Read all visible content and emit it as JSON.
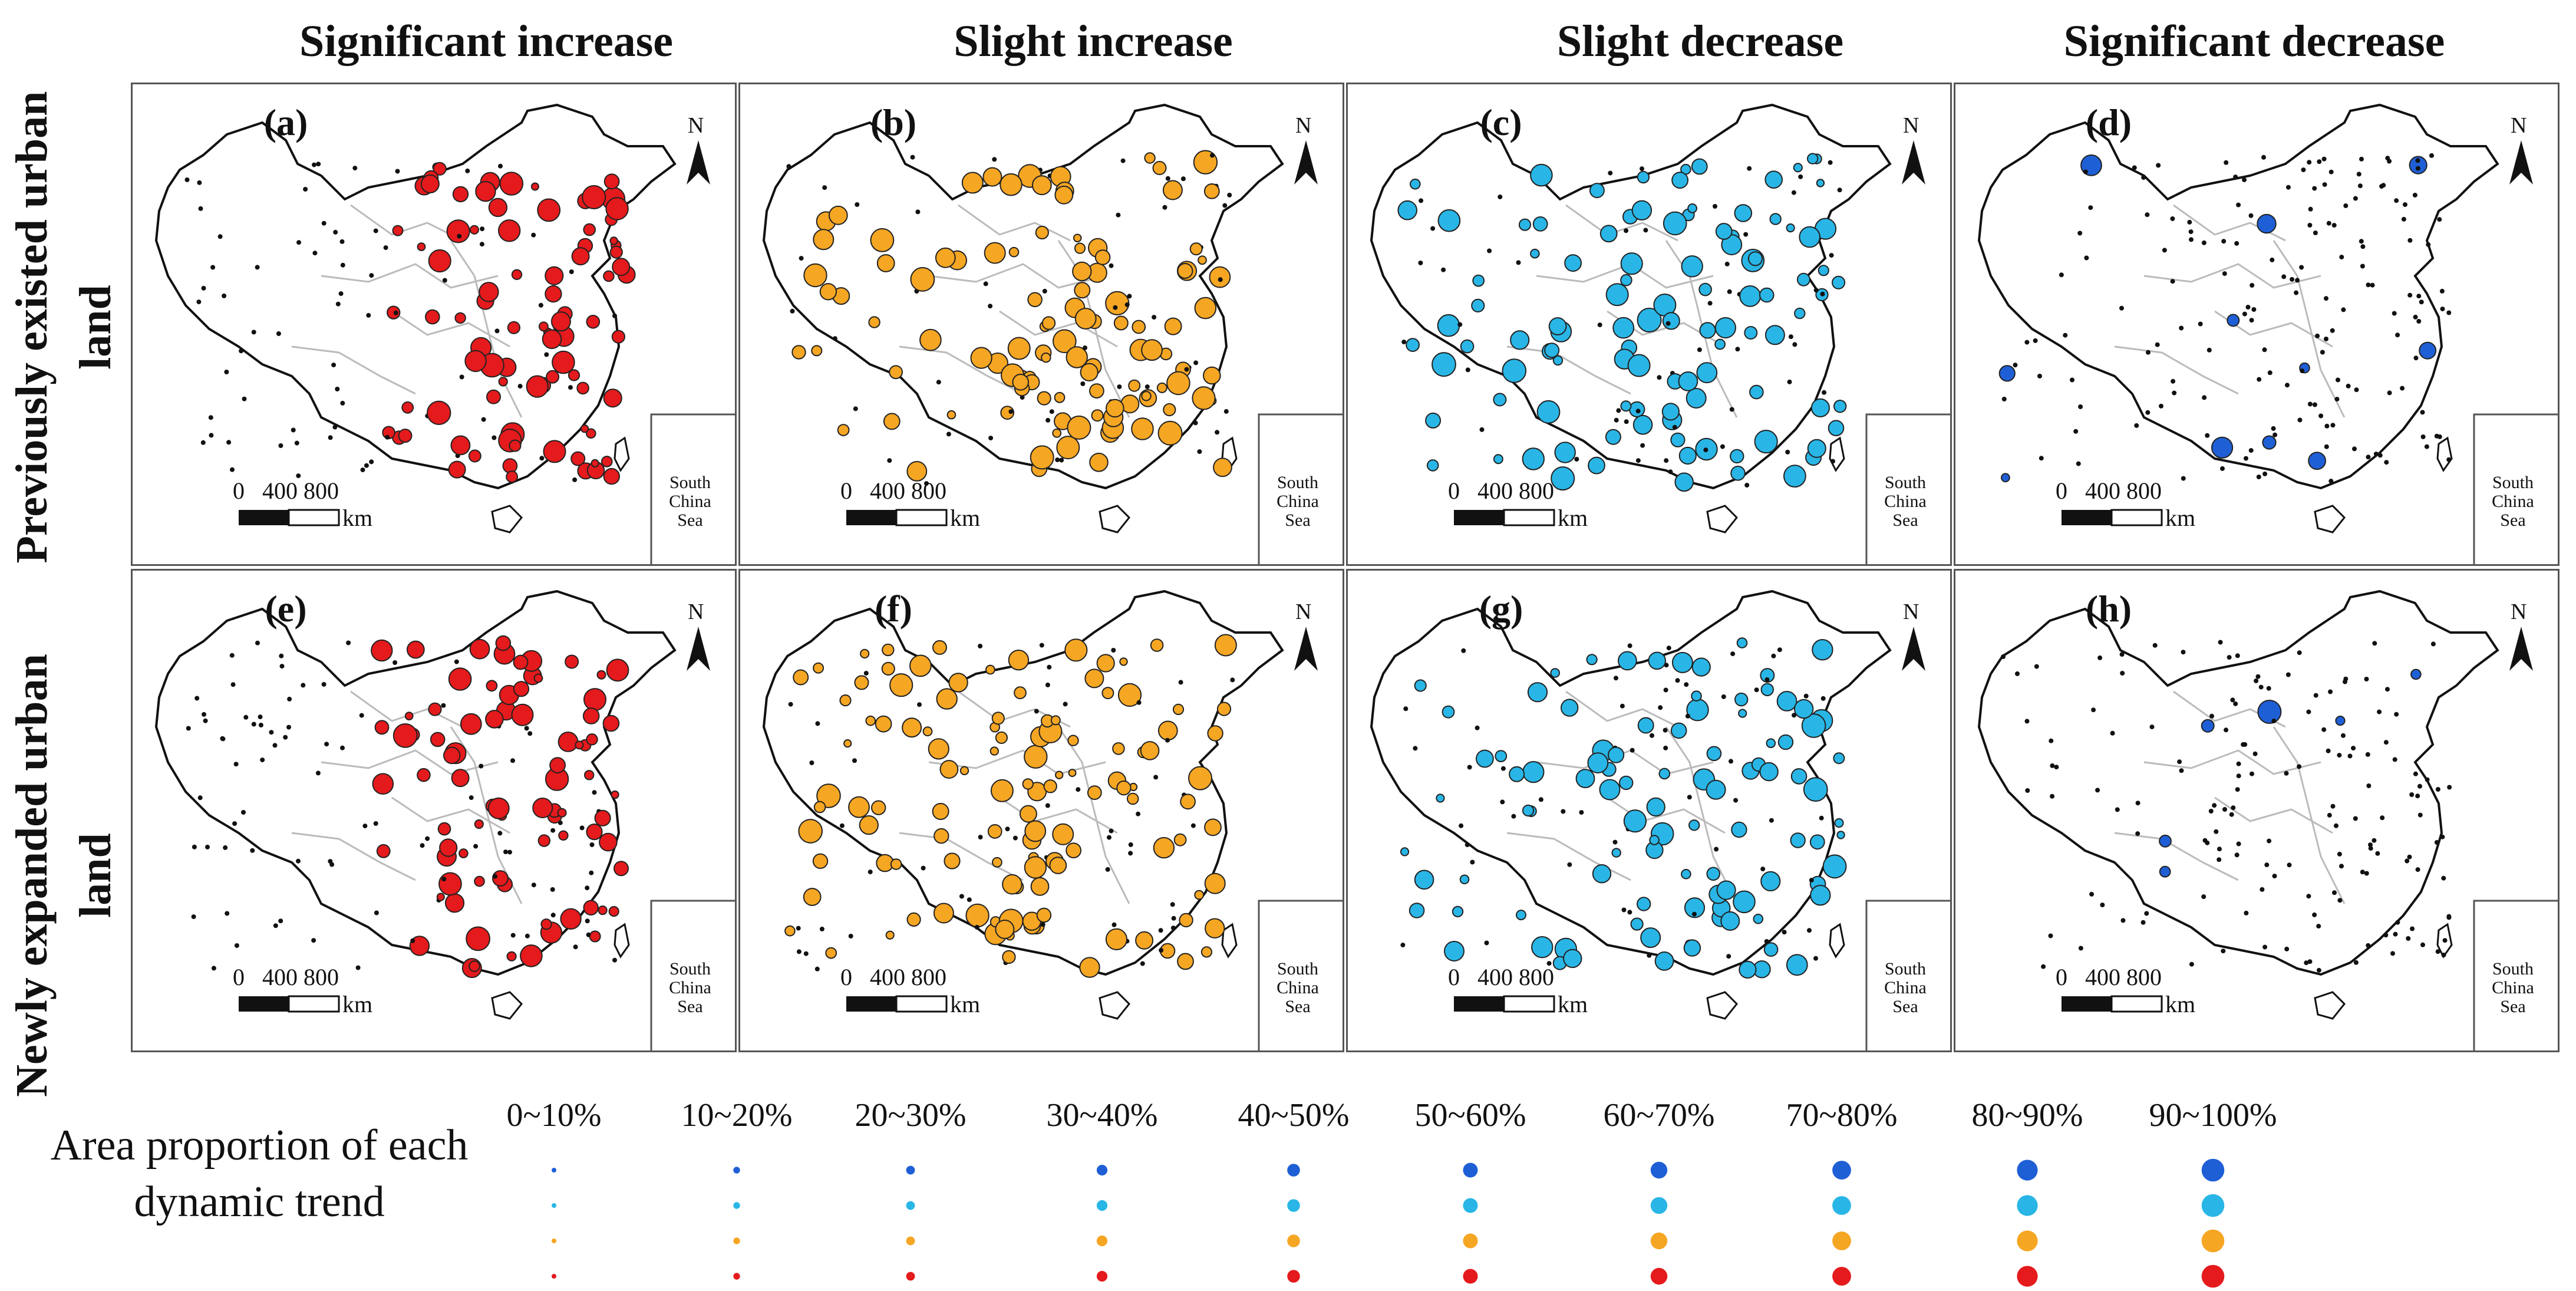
{
  "figure": {
    "column_titles": [
      "Significant increase",
      "Slight increase",
      "Slight decrease",
      "Significant decrease"
    ],
    "row_titles": [
      "Previously existed urban land",
      "Newly expanded urban land"
    ],
    "panels": [
      {
        "label": "(a)",
        "trend": "Significant increase",
        "land": "Previously existed urban land",
        "color": "#e41a1c"
      },
      {
        "label": "(b)",
        "trend": "Slight increase",
        "land": "Previously existed urban land",
        "color": "#f5a623"
      },
      {
        "label": "(c)",
        "trend": "Slight decrease",
        "land": "Previously existed urban land",
        "color": "#29b6e6"
      },
      {
        "label": "(d)",
        "trend": "Significant decrease",
        "land": "Previously existed urban land",
        "color": "#1f5fd6"
      },
      {
        "label": "(e)",
        "trend": "Significant increase",
        "land": "Newly expanded urban land",
        "color": "#e41a1c"
      },
      {
        "label": "(f)",
        "trend": "Slight increase",
        "land": "Newly expanded urban land",
        "color": "#f5a623"
      },
      {
        "label": "(g)",
        "trend": "Slight decrease",
        "land": "Newly expanded urban land",
        "color": "#29b6e6"
      },
      {
        "label": "(h)",
        "trend": "Significant decrease",
        "land": "Newly expanded urban land",
        "color": "#1f5fd6"
      }
    ],
    "north_label": "N",
    "scale_bar": {
      "ticks": "0   400 800",
      "unit": "km"
    },
    "inset_label": "South China Sea"
  },
  "legend": {
    "title": "Area proportion of each dynamic trend",
    "categories": [
      "0~10%",
      "10~20%",
      "20~30%",
      "30~40%",
      "40~50%",
      "50~60%",
      "60~70%",
      "70~80%",
      "80~90%",
      "90~100%"
    ],
    "row_colors": [
      "#1f5fd6",
      "#29b6e6",
      "#f5a623",
      "#e41a1c"
    ]
  }
}
